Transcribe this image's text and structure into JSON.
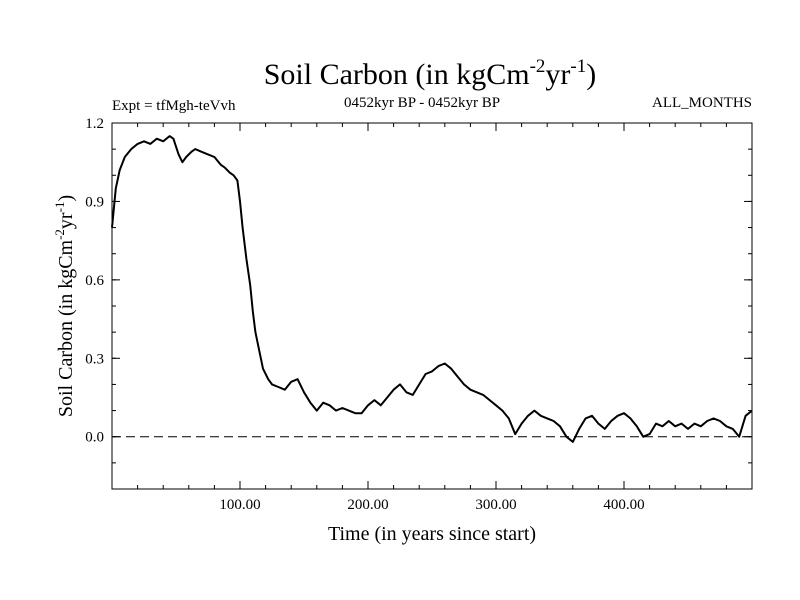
{
  "header": {
    "title_main": "Soil Carbon (in kgCm",
    "title_sup1": "-2",
    "title_mid": "yr",
    "title_sup2": "-1",
    "title_end": ")",
    "expt": "Expt = tfMgh-teVvh",
    "period": "0452kyr BP - 0452kyr BP",
    "months": "ALL_MONTHS"
  },
  "chart_data": {
    "type": "line",
    "title": "Soil Carbon (in kgCm-2yr-1)",
    "xlabel": "Time (in years since start)",
    "ylabel": "Soil Carbon (in kgCm-2yr-1)",
    "ylabel_parts": {
      "main": "Soil Carbon (in kgCm",
      "sup1": "-2",
      "mid": "yr",
      "sup2": "-1",
      "end": ")"
    },
    "xlim": [
      0,
      500
    ],
    "ylim": [
      -0.2,
      1.2
    ],
    "x_ticks": [
      100,
      200,
      300,
      400
    ],
    "x_tick_labels": [
      "100.00",
      "200.00",
      "300.00",
      "400.00"
    ],
    "y_ticks": [
      0.0,
      0.3,
      0.6,
      0.9,
      1.2
    ],
    "y_tick_labels": [
      "0.0",
      "0.3",
      "0.6",
      "0.9",
      "1.2"
    ],
    "reference_line": {
      "y": 0.0,
      "style": "dashed"
    },
    "grid": false,
    "series": [
      {
        "x": [
          0,
          3,
          6,
          10,
          15,
          20,
          25,
          30,
          35,
          40,
          45,
          48,
          52,
          55,
          58,
          62,
          65,
          70,
          75,
          80,
          85,
          88,
          92,
          95,
          98,
          100,
          102,
          105,
          108,
          110,
          112,
          115,
          118,
          122,
          125,
          130,
          135,
          140,
          145,
          150,
          155,
          160,
          165,
          170,
          175,
          180,
          185,
          190,
          195,
          200,
          205,
          210,
          215,
          220,
          225,
          230,
          235,
          240,
          245,
          250,
          255,
          260,
          265,
          270,
          275,
          280,
          285,
          290,
          295,
          300,
          305,
          310,
          315,
          320,
          325,
          330,
          335,
          340,
          345,
          350,
          355,
          360,
          365,
          370,
          375,
          380,
          385,
          390,
          395,
          400,
          405,
          410,
          415,
          420,
          425,
          430,
          435,
          440,
          445,
          450,
          455,
          460,
          465,
          470,
          475,
          480,
          485,
          490,
          495,
          500
        ],
        "y": [
          0.8,
          0.95,
          1.02,
          1.07,
          1.1,
          1.12,
          1.13,
          1.12,
          1.14,
          1.13,
          1.15,
          1.14,
          1.08,
          1.05,
          1.07,
          1.09,
          1.1,
          1.09,
          1.08,
          1.07,
          1.04,
          1.03,
          1.01,
          1.0,
          0.98,
          0.9,
          0.8,
          0.68,
          0.58,
          0.48,
          0.4,
          0.33,
          0.26,
          0.22,
          0.2,
          0.19,
          0.18,
          0.21,
          0.22,
          0.17,
          0.13,
          0.1,
          0.13,
          0.12,
          0.1,
          0.11,
          0.1,
          0.09,
          0.09,
          0.12,
          0.14,
          0.12,
          0.15,
          0.18,
          0.2,
          0.17,
          0.16,
          0.2,
          0.24,
          0.25,
          0.27,
          0.28,
          0.26,
          0.23,
          0.2,
          0.18,
          0.17,
          0.16,
          0.14,
          0.12,
          0.1,
          0.07,
          0.01,
          0.05,
          0.08,
          0.1,
          0.08,
          0.07,
          0.06,
          0.04,
          0.0,
          -0.02,
          0.03,
          0.07,
          0.08,
          0.05,
          0.03,
          0.06,
          0.08,
          0.09,
          0.07,
          0.04,
          0.0,
          0.01,
          0.05,
          0.04,
          0.06,
          0.04,
          0.05,
          0.03,
          0.05,
          0.04,
          0.06,
          0.07,
          0.06,
          0.04,
          0.03,
          0.0,
          0.08,
          0.1
        ]
      }
    ]
  }
}
